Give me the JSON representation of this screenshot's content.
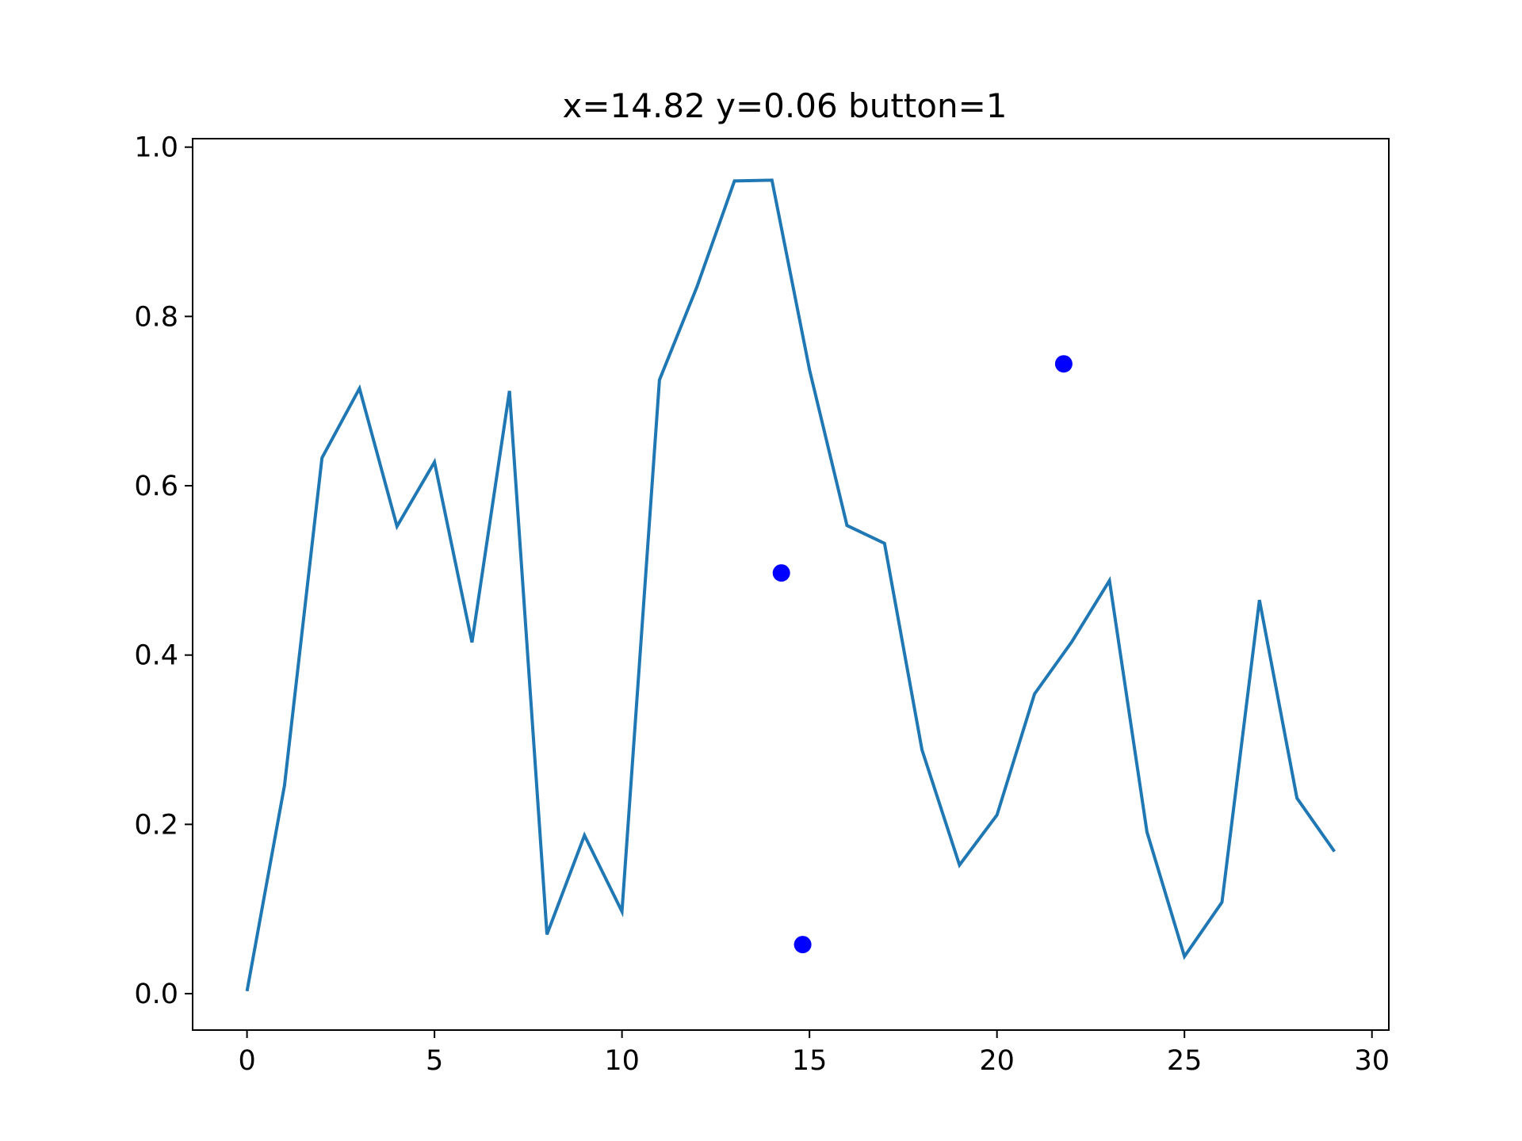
{
  "chart_data": {
    "type": "line",
    "title": "x=14.82 y=0.06 button=1",
    "xlabel": "",
    "ylabel": "",
    "xlim": [
      -1.45,
      30.45
    ],
    "ylim": [
      -0.043,
      1.01
    ],
    "x_ticks": [
      0,
      5,
      10,
      15,
      20,
      25,
      30
    ],
    "x_tick_labels": [
      "0",
      "5",
      "10",
      "15",
      "20",
      "25",
      "30"
    ],
    "y_ticks": [
      0.0,
      0.2,
      0.4,
      0.6,
      0.8,
      1.0
    ],
    "y_tick_labels": [
      "0.0",
      "0.2",
      "0.4",
      "0.6",
      "0.8",
      "1.0"
    ],
    "grid": false,
    "legend": "none",
    "series": [
      {
        "kind": "line",
        "color": "#1f77b4",
        "x": [
          0,
          1,
          2,
          3,
          4,
          5,
          6,
          7,
          8,
          9,
          10,
          11,
          12,
          13,
          14,
          15,
          16,
          17,
          18,
          19,
          20,
          21,
          22,
          23,
          24,
          25,
          26,
          27,
          28,
          29
        ],
        "y": [
          0.003,
          0.246,
          0.633,
          0.715,
          0.552,
          0.628,
          0.415,
          0.712,
          0.07,
          0.187,
          0.097,
          0.725,
          0.835,
          0.96,
          0.961,
          0.737,
          0.553,
          0.532,
          0.288,
          0.152,
          0.211,
          0.354,
          0.416,
          0.488,
          0.191,
          0.044,
          0.108,
          0.465,
          0.231,
          0.168
        ]
      },
      {
        "kind": "scatter",
        "color": "#0000ff",
        "x": [
          14.25,
          21.78,
          14.82
        ],
        "y": [
          0.497,
          0.744,
          0.058
        ]
      }
    ]
  }
}
